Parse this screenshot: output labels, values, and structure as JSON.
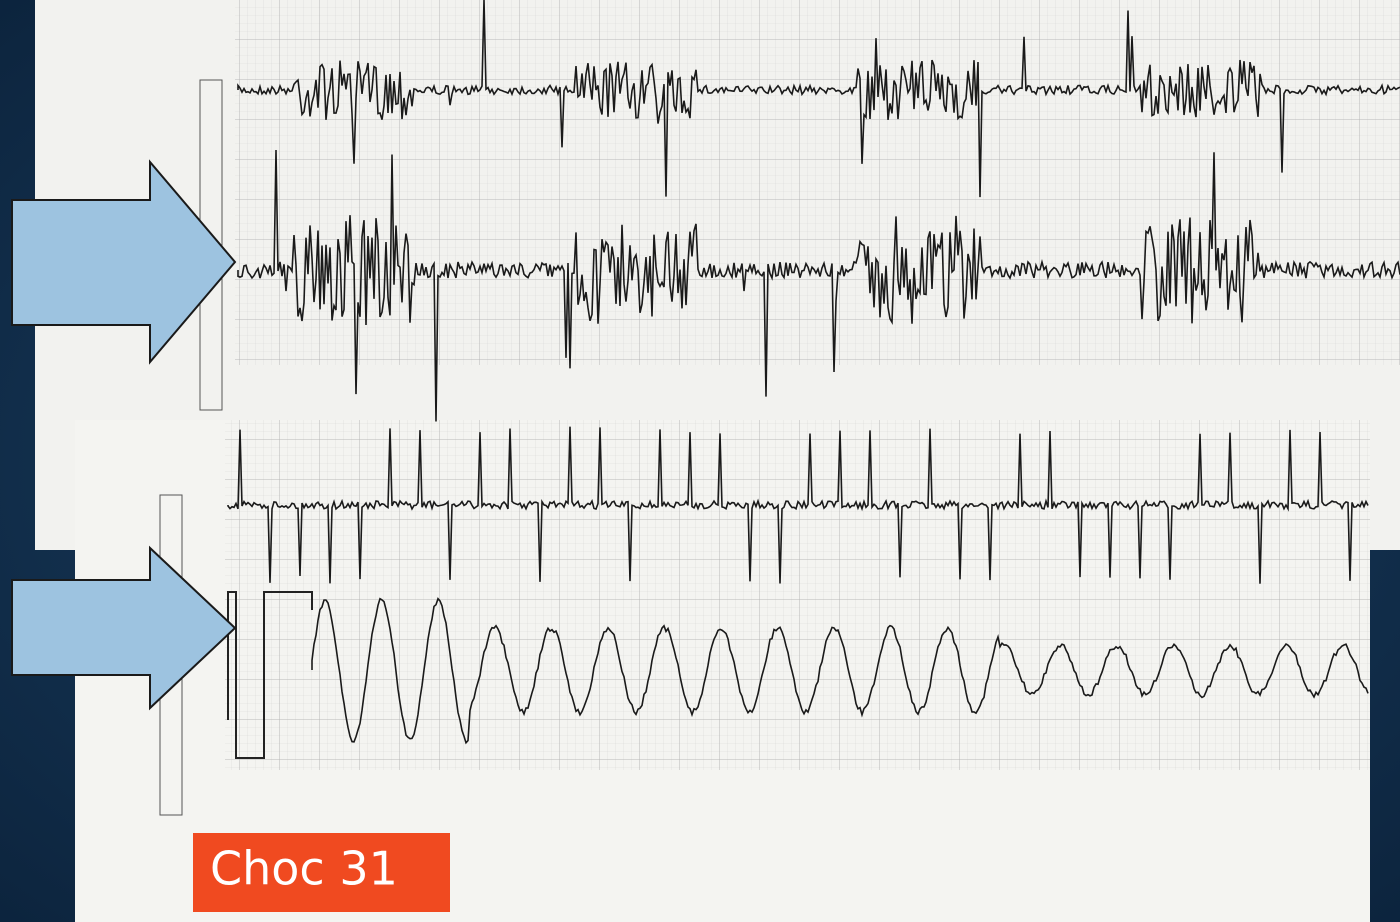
{
  "slide": {
    "caption": "Choc 31"
  }
}
